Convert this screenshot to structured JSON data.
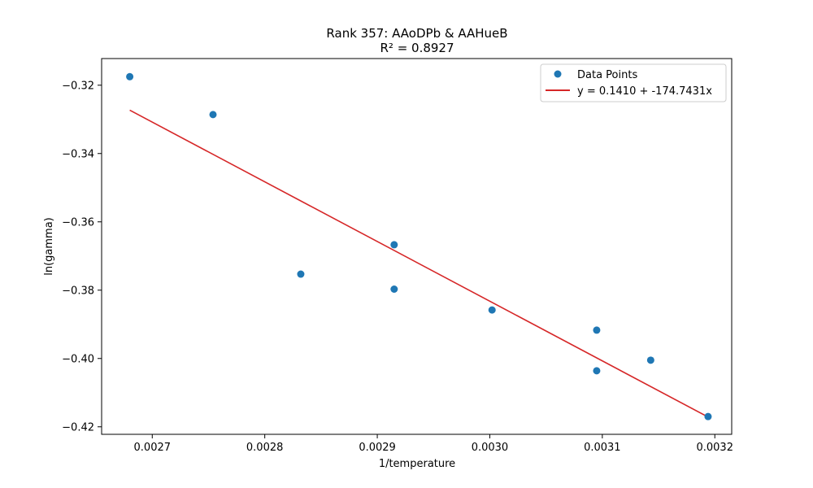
{
  "chart_data": {
    "type": "scatter",
    "title": "Rank 357: AAoDPb & AAHueB",
    "subtitle": "R² = 0.8927",
    "xlabel": "1/temperature",
    "ylabel": "ln(gamma)",
    "xlim": [
      0.002655,
      0.003215
    ],
    "ylim": [
      -0.4222,
      -0.3122
    ],
    "xticks": [
      0.0027,
      0.0028,
      0.0029,
      0.003,
      0.0031,
      0.0032
    ],
    "xtick_labels": [
      "0.0027",
      "0.0028",
      "0.0029",
      "0.0030",
      "0.0031",
      "0.0032"
    ],
    "yticks": [
      -0.42,
      -0.4,
      -0.38,
      -0.36,
      -0.34,
      -0.32
    ],
    "ytick_labels": [
      "−0.42",
      "−0.40",
      "−0.38",
      "−0.36",
      "−0.34",
      "−0.32"
    ],
    "grid": false,
    "legend_position": "top-right",
    "series": [
      {
        "name": "Data Points",
        "kind": "scatter",
        "color": "#1f77b4",
        "x": [
          0.00268,
          0.002754,
          0.002832,
          0.002915,
          0.002915,
          0.003002,
          0.003095,
          0.003095,
          0.003143,
          0.003194
        ],
        "y": [
          -0.3175,
          -0.3286,
          -0.3753,
          -0.3667,
          -0.3797,
          -0.3858,
          -0.3917,
          -0.4036,
          -0.4005,
          -0.417
        ]
      },
      {
        "name": "y = 0.1410 + -174.7431x",
        "kind": "line",
        "color": "#d62728",
        "intercept": 0.141,
        "slope": -174.7431,
        "x_range": [
          0.00268,
          0.003194
        ]
      }
    ]
  }
}
